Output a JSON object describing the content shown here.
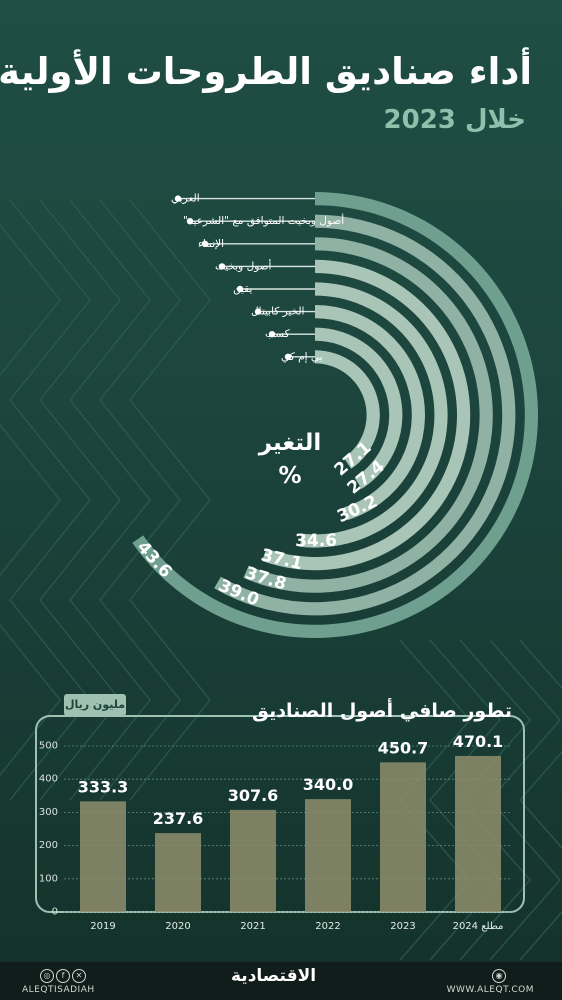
{
  "header": {
    "title": "أداء صناديق الطروحات الأولية",
    "subtitle": "خلال 2023"
  },
  "radial_center_label": {
    "line1": "التغير",
    "line2": "%"
  },
  "bar_section": {
    "title": "تطور صافي أصول الصناديق",
    "unit": "مليون ريال"
  },
  "chart_data": [
    {
      "type": "radial-bar",
      "unit": "%",
      "categories": [
        "العربي",
        "أصول وبخيت المتوافق مع \"الشرعية\"",
        "الإنماء",
        "أصول وبخيت",
        "يقين",
        "الخير كابيتال",
        "كسب",
        "بي إم كي"
      ],
      "values": [
        43.6,
        39.0,
        37.8,
        37.1,
        34.6,
        30.2,
        27.4,
        27.1
      ],
      "value_labels": [
        "43.6",
        "39.0",
        "37.8",
        "37.1",
        "34.6",
        "30.2",
        "27.4",
        "27.1"
      ]
    },
    {
      "type": "bar",
      "categories": [
        "2019",
        "2020",
        "2021",
        "2022",
        "2023",
        "مطلع 2024"
      ],
      "values": [
        333.3,
        237.6,
        307.6,
        340.0,
        450.7,
        470.1
      ],
      "value_labels": [
        "333.3",
        "237.6",
        "307.6",
        "340.0",
        "450.7",
        "470.1"
      ],
      "ylim": [
        0,
        500
      ],
      "yticks": [
        "0",
        "100",
        "200",
        "300",
        "400",
        "500"
      ],
      "grid": true
    }
  ],
  "footer": {
    "brand": "الاقتصادية",
    "handle": "ALEQTISADIAH",
    "website": "WWW.ALEQT.COM"
  },
  "colors": {
    "background": "#1f4e44",
    "ring": "#a8c4b6",
    "ring_inner": "#6d9c8b",
    "subtitle": "#8fc0ac",
    "bar": "#8f8e6d",
    "frame": "#9fc1b2"
  }
}
